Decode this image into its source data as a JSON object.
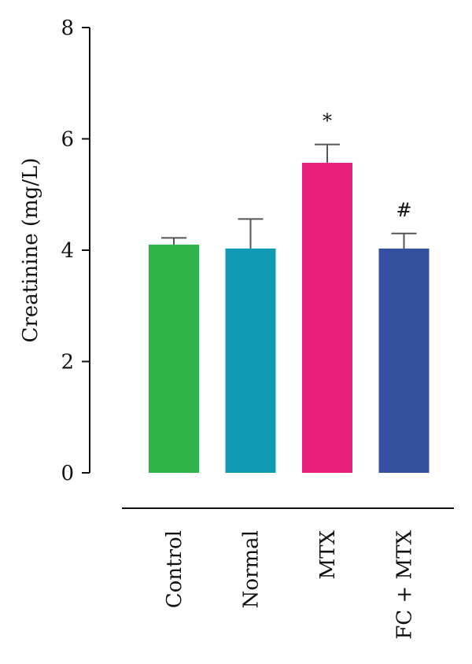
{
  "chart_data": {
    "type": "bar",
    "title": "",
    "xlabel": "",
    "ylabel": "Creatinine (mg/L)",
    "ylim": [
      0,
      8
    ],
    "yticks": [
      0,
      2,
      4,
      6,
      8
    ],
    "grid": false,
    "legend": "none",
    "categories": [
      "Control",
      "Normal",
      "MTX",
      "FC + MTX"
    ],
    "values": [
      4.1,
      4.03,
      5.57,
      4.03
    ],
    "errors": [
      0.12,
      0.53,
      0.33,
      0.27
    ],
    "significance": [
      "",
      "",
      "*",
      "#"
    ],
    "colors": [
      "#2fb44a",
      "#0e9ab3",
      "#ea1f7d",
      "#34509f"
    ]
  }
}
